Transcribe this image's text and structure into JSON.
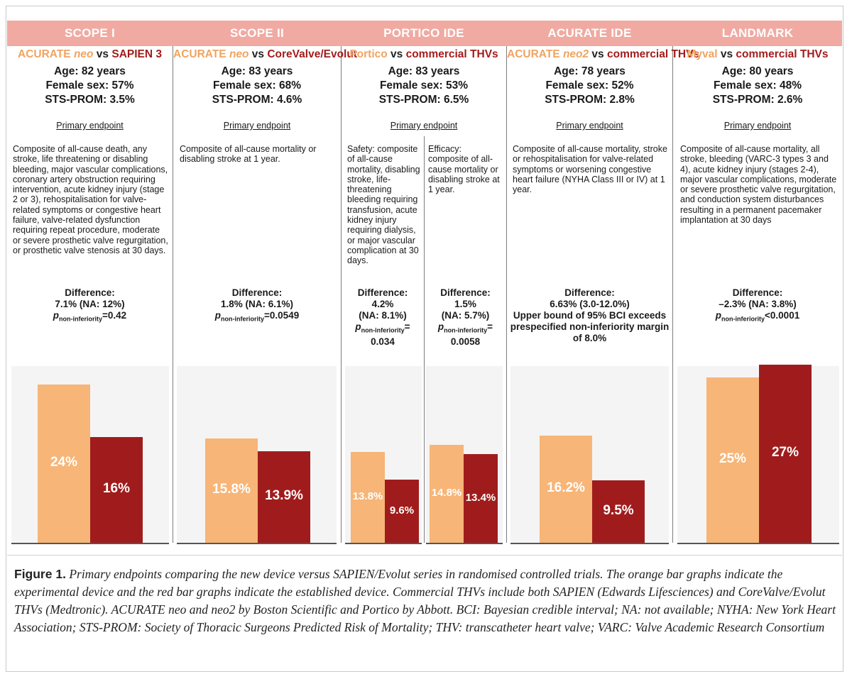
{
  "colors": {
    "header": "#f0aaa2",
    "experimental": "#f7b577",
    "established": "#a01c1c",
    "chart_bg": "#f4f4f4"
  },
  "trials": [
    {
      "title": "SCOPE I",
      "vs": {
        "exp_a": "ACURATE ",
        "exp_b": "neo",
        "vs": " vs ",
        "ctrl": "SAPIEN 3"
      },
      "age": "Age: 82 years",
      "female": "Female sex: 57%",
      "sts": "STS-PROM: 3.5%",
      "endpoint_label": "Primary endpoint",
      "desc": "Composite of all-cause death, any stroke, life threatening or disabling bleeding, major vascular complications, coronary artery obstruction requiring intervention, acute kidney injury (stage 2 or 3), rehospitalisation for valve-related symptoms or congestive heart failure, valve-related dysfunction requiring repeat procedure, moderate or severe prosthetic valve regurgitation, or prosthetic valve stenosis at 30 days.",
      "diff_label": "Difference:",
      "diff_value": "7.1% (NA: 12%)",
      "p_letter": "p",
      "p_sub": "non-inferiority",
      "p_value": "=0.42"
    },
    {
      "title": "SCOPE II",
      "vs": {
        "exp_a": "ACURATE ",
        "exp_b": "neo",
        "vs": " vs ",
        "ctrl": "CoreValve/Evolut"
      },
      "age": "Age: 83 years",
      "female": "Female sex: 68%",
      "sts": "STS-PROM: 4.6%",
      "endpoint_label": "Primary endpoint",
      "desc": "Composite of all-cause mortality or disabling stroke at 1 year.",
      "diff_label": "Difference:",
      "diff_value": "1.8% (NA: 6.1%)",
      "p_letter": "p",
      "p_sub": "non-inferiority",
      "p_value": "=0.0549"
    },
    {
      "title": "PORTICO IDE",
      "vs": {
        "exp_a": "Portico",
        "exp_b": "",
        "vs": " vs ",
        "ctrl": "commercial THVs"
      },
      "age": "Age: 83 years",
      "female": "Female sex: 53%",
      "sts": "STS-PROM: 6.5%",
      "endpoint_label": "Primary endpoint",
      "desc_safety": "Safety: composite of all-cause mortality, disabling stroke, life-threatening bleeding requiring transfusion, acute kidney injury requiring dialysis, or major vascular complication at 30 days.",
      "desc_efficacy": "Efficacy: composite of all-cause mortality or disabling stroke at 1 year.",
      "diff_safety": {
        "label": "Difference:",
        "value": "4.2%",
        "na": "(NA: 8.1%)",
        "p_letter": "p",
        "p_sub": "non-inferiority",
        "p_eq": "=",
        "p_value": "0.034"
      },
      "diff_efficacy": {
        "label": "Difference:",
        "value": "1.5%",
        "na": "(NA: 5.7%)",
        "p_letter": "p",
        "p_sub": "non-inferiority",
        "p_eq": "=",
        "p_value": "0.0058"
      }
    },
    {
      "title": "ACURATE IDE",
      "vs": {
        "exp_a": "ACURATE ",
        "exp_b": "neo2",
        "vs": " vs ",
        "ctrl": "commercial THVs"
      },
      "age": "Age: 78 years",
      "female": "Female sex: 52%",
      "sts": "STS-PROM: 2.8%",
      "endpoint_label": "Primary endpoint",
      "desc": "Composite of all-cause mortality, stroke or rehospitalisation for valve-related symptoms or worsening congestive heart failure (NYHA Class III or IV) at 1 year.",
      "diff_label": "Difference:",
      "diff_value": "6.63% (3.0-12.0%)",
      "diff_note": "Upper bound of 95% BCI exceeds prespecified non-inferiority margin of 8.0%"
    },
    {
      "title": "LANDMARK",
      "vs": {
        "exp_a": "Myval",
        "exp_b": "",
        "vs": " vs ",
        "ctrl": "commercial THVs"
      },
      "age": "Age: 80 years",
      "female": "Female sex: 48%",
      "sts": "STS-PROM: 2.6%",
      "endpoint_label": "Primary endpoint",
      "desc": "Composite of all-cause mortality, all stroke, bleeding (VARC-3 types 3 and 4), acute kidney injury (stages 2-4), major vascular complications, moderate or severe prosthetic valve regurgitation, and conduction system disturbances resulting in a permanent pacemaker implantation at 30 days",
      "diff_label": "Difference:",
      "diff_value": "–2.3% (NA: 3.8%)",
      "p_letter": "p",
      "p_sub": "non-inferiority",
      "p_value": "<0.0001"
    }
  ],
  "chart_data": {
    "type": "bar",
    "title": "",
    "xlabel": "",
    "ylabel": "",
    "ylim": [
      0,
      30
    ],
    "grid": false,
    "categories": [
      "SCOPE I",
      "SCOPE II",
      "PORTICO IDE safety",
      "PORTICO IDE efficacy",
      "ACURATE IDE",
      "LANDMARK"
    ],
    "series": [
      {
        "name": "Experimental device",
        "color": "#f7b577",
        "values": [
          24,
          15.8,
          13.8,
          14.8,
          16.2,
          25
        ],
        "labels": [
          "24%",
          "15.8%",
          "13.8%",
          "14.8%",
          "16.2%",
          "25%"
        ]
      },
      {
        "name": "Established device",
        "color": "#a01c1c",
        "values": [
          16,
          13.9,
          9.6,
          13.4,
          9.5,
          27
        ],
        "labels": [
          "16%",
          "13.9%",
          "9.6%",
          "13.4%",
          "9.5%",
          "27%"
        ]
      }
    ]
  },
  "caption": {
    "figure_label": "Figure 1.",
    "text": " Primary endpoints comparing the new device versus SAPIEN/Evolut series in randomised controlled trials. The orange bar graphs indicate the experimental device and the red bar graphs indicate the established device. Commercial THVs include both SAPIEN (Edwards Lifesciences) and CoreValve/Evolut THVs (Medtronic). ACURATE  neo and neo2 by Boston Scientific and Portico by Abbott. BCI: Bayesian credible interval; NA: not available; NYHA: New York Heart Association; STS-PROM: Society of Thoracic Surgeons Predicted Risk of Mortality; THV: transcatheter heart valve; VARC: Valve Academic Research Consortium"
  }
}
